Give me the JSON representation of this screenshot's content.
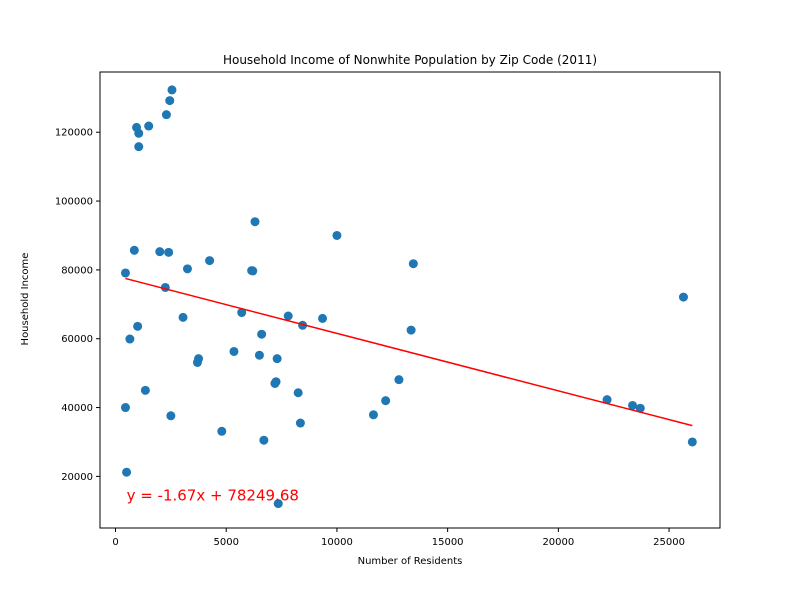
{
  "chart_data": {
    "type": "scatter",
    "title": "Household Income of Nonwhite Population by Zip Code (2011)",
    "xlabel": "Number of Residents",
    "ylabel": "Household Income",
    "xlim": [
      -700,
      27300
    ],
    "ylim": [
      5000,
      137500
    ],
    "x_ticks": [
      0,
      5000,
      10000,
      15000,
      20000,
      25000
    ],
    "x_tick_labels": [
      "0",
      "5000",
      "10000",
      "15000",
      "20000",
      "25000"
    ],
    "y_ticks": [
      20000,
      40000,
      60000,
      80000,
      100000,
      120000
    ],
    "y_tick_labels": [
      "20000",
      "40000",
      "60000",
      "80000",
      "100000",
      "120000"
    ],
    "grid": false,
    "series": [
      {
        "color": "#1f77b4",
        "points": [
          [
            2550,
            132300
          ],
          [
            2450,
            129200
          ],
          [
            950,
            121400
          ],
          [
            1500,
            121800
          ],
          [
            2300,
            125100
          ],
          [
            1050,
            119700
          ],
          [
            1050,
            115800
          ],
          [
            6300,
            94000
          ],
          [
            10000,
            90000
          ],
          [
            850,
            85700
          ],
          [
            2000,
            85300
          ],
          [
            2400,
            85100
          ],
          [
            4250,
            82700
          ],
          [
            13450,
            81800
          ],
          [
            3250,
            80300
          ],
          [
            6150,
            79800
          ],
          [
            6200,
            79700
          ],
          [
            450,
            79100
          ],
          [
            2250,
            74900
          ],
          [
            25650,
            72100
          ],
          [
            5700,
            67600
          ],
          [
            7800,
            66600
          ],
          [
            3050,
            66200
          ],
          [
            9350,
            65900
          ],
          [
            8450,
            63900
          ],
          [
            1000,
            63600
          ],
          [
            13350,
            62500
          ],
          [
            6600,
            61300
          ],
          [
            650,
            59900
          ],
          [
            5350,
            56300
          ],
          [
            6500,
            55200
          ],
          [
            3750,
            54200
          ],
          [
            7300,
            54200
          ],
          [
            3700,
            53100
          ],
          [
            7250,
            47500
          ],
          [
            7200,
            47000
          ],
          [
            12800,
            48100
          ],
          [
            1350,
            45000
          ],
          [
            8250,
            44300
          ],
          [
            12200,
            42000
          ],
          [
            22200,
            42300
          ],
          [
            23350,
            40600
          ],
          [
            23700,
            39800
          ],
          [
            450,
            40000
          ],
          [
            2500,
            37600
          ],
          [
            11650,
            37900
          ],
          [
            8350,
            35500
          ],
          [
            4800,
            33100
          ],
          [
            6700,
            30500
          ],
          [
            26050,
            30000
          ],
          [
            500,
            21200
          ],
          [
            7350,
            12100
          ]
        ]
      }
    ],
    "regression": {
      "color": "#ff0000",
      "slope": -1.67,
      "intercept": 78249.68,
      "x_range": [
        450,
        26050
      ],
      "equation_label": "y = -1.67x + 78249.68",
      "label_anchor": [
        500,
        13000
      ]
    }
  }
}
